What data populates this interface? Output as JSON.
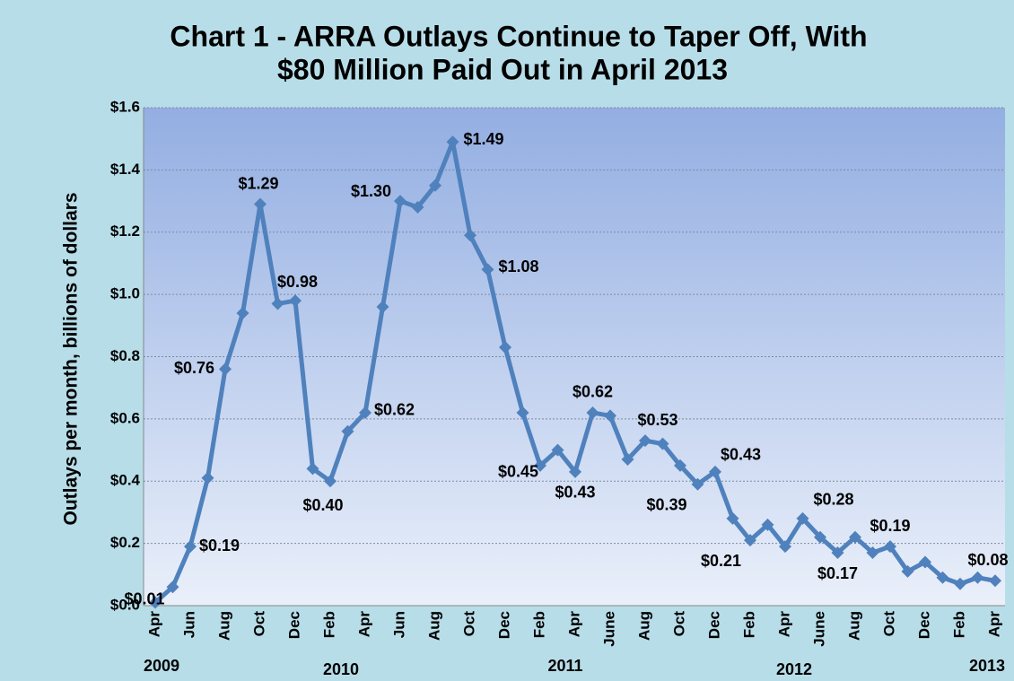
{
  "chart_data": {
    "type": "line",
    "title": [
      "Chart 1 - ARRA Outlays Continue to Taper Off, With",
      "$80 Million Paid Out in April 2013"
    ],
    "y_label": "Outlays per month, billions of dollars",
    "categories": [
      "Apr",
      null,
      "Jun",
      null,
      "Aug",
      null,
      "Oct",
      null,
      "Dec",
      null,
      "Feb",
      null,
      "Apr",
      null,
      "Jun",
      null,
      "Aug",
      null,
      "Oct",
      null,
      "Dec",
      null,
      "Feb",
      null,
      "Apr",
      null,
      "June",
      null,
      "Aug",
      null,
      "Oct",
      null,
      "Dec",
      null,
      "Feb",
      null,
      "Apr",
      null,
      "June",
      null,
      "Aug",
      null,
      "Oct",
      null,
      "Dec",
      null,
      "Feb",
      null,
      "Apr"
    ],
    "year_labels": [
      "2009",
      "2010",
      "2011",
      "2012",
      "2013"
    ],
    "series": [
      {
        "name": "Outlays",
        "color": "#4f81bd",
        "values": [
          0.01,
          0.06,
          0.19,
          0.41,
          0.76,
          0.94,
          1.29,
          0.97,
          0.98,
          0.44,
          0.4,
          0.56,
          0.62,
          0.96,
          1.3,
          1.28,
          1.35,
          1.49,
          1.19,
          1.08,
          0.83,
          0.62,
          0.45,
          0.5,
          0.43,
          0.62,
          0.61,
          0.47,
          0.53,
          0.52,
          0.45,
          0.39,
          0.43,
          0.28,
          0.21,
          0.26,
          0.19,
          0.28,
          0.22,
          0.17,
          0.22,
          0.17,
          0.19,
          0.11,
          0.14,
          0.09,
          0.07,
          0.09,
          0.08
        ],
        "value_labels": [
          "$0.01",
          null,
          "$0.19",
          null,
          "$0.76",
          null,
          "$1.29",
          null,
          "$0.98",
          null,
          "$0.40",
          null,
          "$0.62",
          null,
          "$1.30",
          null,
          null,
          "$1.49",
          null,
          "$1.08",
          null,
          null,
          "$0.45",
          null,
          "$0.43",
          "$0.62",
          null,
          null,
          "$0.53",
          null,
          null,
          "$0.39",
          "$0.43",
          null,
          "$0.21",
          null,
          null,
          "$0.28",
          null,
          "$0.17",
          null,
          null,
          "$0.19",
          null,
          null,
          null,
          null,
          null,
          "$0.08"
        ]
      }
    ],
    "ylim": [
      0,
      1.6
    ],
    "yticks": [
      {
        "value": 0,
        "label": "$0.0"
      },
      {
        "value": 0.2,
        "label": "$0.2"
      },
      {
        "value": 0.4,
        "label": "$0.4"
      },
      {
        "value": 0.6,
        "label": "$0.6"
      },
      {
        "value": 0.8,
        "label": "$0.8"
      },
      {
        "value": 1.0,
        "label": "$1.0"
      },
      {
        "value": 1.2,
        "label": "$1.2"
      },
      {
        "value": 1.4,
        "label": "$1.4"
      },
      {
        "value": 1.6,
        "label": "$1.6"
      }
    ],
    "grid": true
  }
}
